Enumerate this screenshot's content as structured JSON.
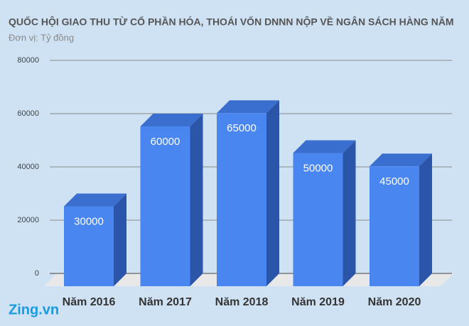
{
  "chart_data": {
    "type": "bar3d",
    "title": "QUỐC HỘI GIAO THU TỪ CỔ PHẦN HÓA, THOÁI VỐN DNNN NỘP VỀ NGÂN SÁCH HÀNG NĂM",
    "subtitle": "Đơn vị: Tỷ đồng",
    "categories": [
      "Năm 2016",
      "Năm 2017",
      "Năm 2018",
      "Năm 2019",
      "Năm 2020"
    ],
    "values": [
      30000,
      60000,
      65000,
      50000,
      45000
    ],
    "color": "#4a86f0",
    "ylim": [
      0,
      80000
    ],
    "yticks": [
      0,
      20000,
      40000,
      60000,
      80000
    ],
    "grid": true,
    "watermark": "Zing.vn"
  }
}
